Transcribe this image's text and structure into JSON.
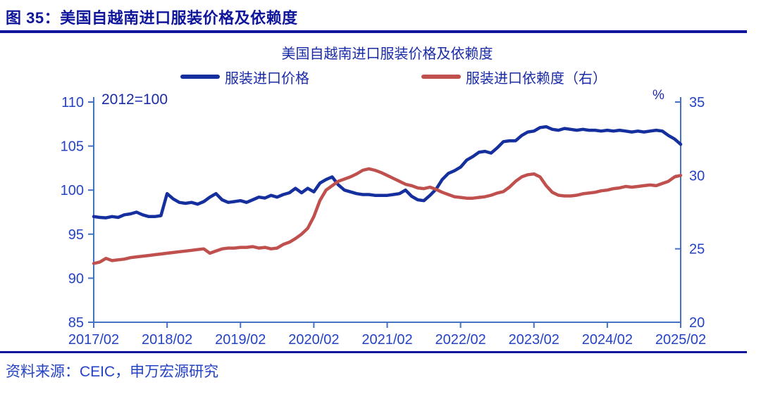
{
  "header": {
    "figure_label": "图 35：美国自越南进口服装价格及依赖度"
  },
  "footer": {
    "source": "资料来源：CEIC，申万宏源研究"
  },
  "colors": {
    "header_navy": "#10169B",
    "text_blue": "#1A2BA8",
    "label_blue": "#2443C4",
    "axis_blue": "#4472C4",
    "price_line": "#15309E",
    "dependence_line": "#C0504D"
  },
  "chart_data": {
    "type": "line",
    "title": "美国自越南进口服装价格及依赖度",
    "annotation": "2012=100",
    "right_axis_unit": "%",
    "x_start": "2017/02",
    "x_interval": "monthly",
    "x_tick_labels": [
      "2017/02",
      "2018/02",
      "2019/02",
      "2020/02",
      "2021/02",
      "2022/02",
      "2023/02",
      "2024/02",
      "2025/02"
    ],
    "left_axis": {
      "min": 85,
      "max": 110,
      "ticks": [
        85,
        90,
        95,
        100,
        105,
        110
      ]
    },
    "right_axis": {
      "min": 20,
      "max": 35,
      "ticks": [
        20,
        25,
        30,
        35
      ]
    },
    "legend_position": "top",
    "grid": false,
    "series": [
      {
        "name": "服装进口价格",
        "axis": "left",
        "color": "#15309E",
        "values": [
          97.0,
          96.9,
          96.85,
          97.0,
          96.9,
          97.2,
          97.3,
          97.5,
          97.2,
          97.0,
          97.0,
          97.1,
          99.6,
          99.0,
          98.6,
          98.5,
          98.6,
          98.4,
          98.7,
          99.2,
          99.6,
          98.9,
          98.6,
          98.7,
          98.8,
          98.6,
          98.9,
          99.2,
          99.1,
          99.4,
          99.2,
          99.5,
          99.7,
          100.2,
          99.7,
          100.2,
          99.8,
          100.8,
          101.2,
          101.5,
          100.6,
          100.0,
          99.8,
          99.6,
          99.5,
          99.5,
          99.4,
          99.4,
          99.4,
          99.5,
          99.6,
          100.0,
          99.3,
          98.9,
          98.8,
          99.4,
          100.1,
          101.2,
          101.9,
          102.2,
          102.6,
          103.4,
          103.8,
          104.3,
          104.4,
          104.2,
          104.8,
          105.5,
          105.6,
          105.6,
          106.2,
          106.6,
          106.7,
          107.1,
          107.2,
          106.9,
          106.8,
          107.0,
          106.9,
          106.8,
          106.9,
          106.8,
          106.8,
          106.7,
          106.8,
          106.7,
          106.8,
          106.7,
          106.6,
          106.7,
          106.6,
          106.7,
          106.8,
          106.7,
          106.2,
          105.8,
          105.2
        ]
      },
      {
        "name": "服装进口依赖度（右）",
        "axis": "right",
        "color": "#C0504D",
        "values": [
          24.0,
          24.1,
          24.35,
          24.2,
          24.25,
          24.3,
          24.4,
          24.45,
          24.5,
          24.55,
          24.6,
          24.65,
          24.7,
          24.75,
          24.8,
          24.85,
          24.9,
          24.95,
          25.0,
          24.7,
          24.85,
          25.0,
          25.05,
          25.05,
          25.1,
          25.1,
          25.15,
          25.05,
          25.1,
          25.0,
          25.05,
          25.3,
          25.45,
          25.7,
          26.0,
          26.4,
          27.2,
          28.3,
          29.0,
          29.3,
          29.6,
          29.75,
          29.9,
          30.1,
          30.35,
          30.45,
          30.35,
          30.2,
          30.0,
          29.8,
          29.6,
          29.4,
          29.3,
          29.15,
          29.1,
          29.2,
          29.05,
          28.85,
          28.7,
          28.55,
          28.5,
          28.45,
          28.45,
          28.5,
          28.55,
          28.65,
          28.8,
          28.9,
          29.2,
          29.6,
          29.9,
          30.05,
          30.1,
          29.9,
          29.3,
          28.85,
          28.65,
          28.6,
          28.6,
          28.65,
          28.75,
          28.8,
          28.85,
          28.95,
          29.0,
          29.1,
          29.15,
          29.25,
          29.2,
          29.25,
          29.3,
          29.35,
          29.3,
          29.45,
          29.6,
          29.9,
          30.0
        ]
      }
    ]
  }
}
